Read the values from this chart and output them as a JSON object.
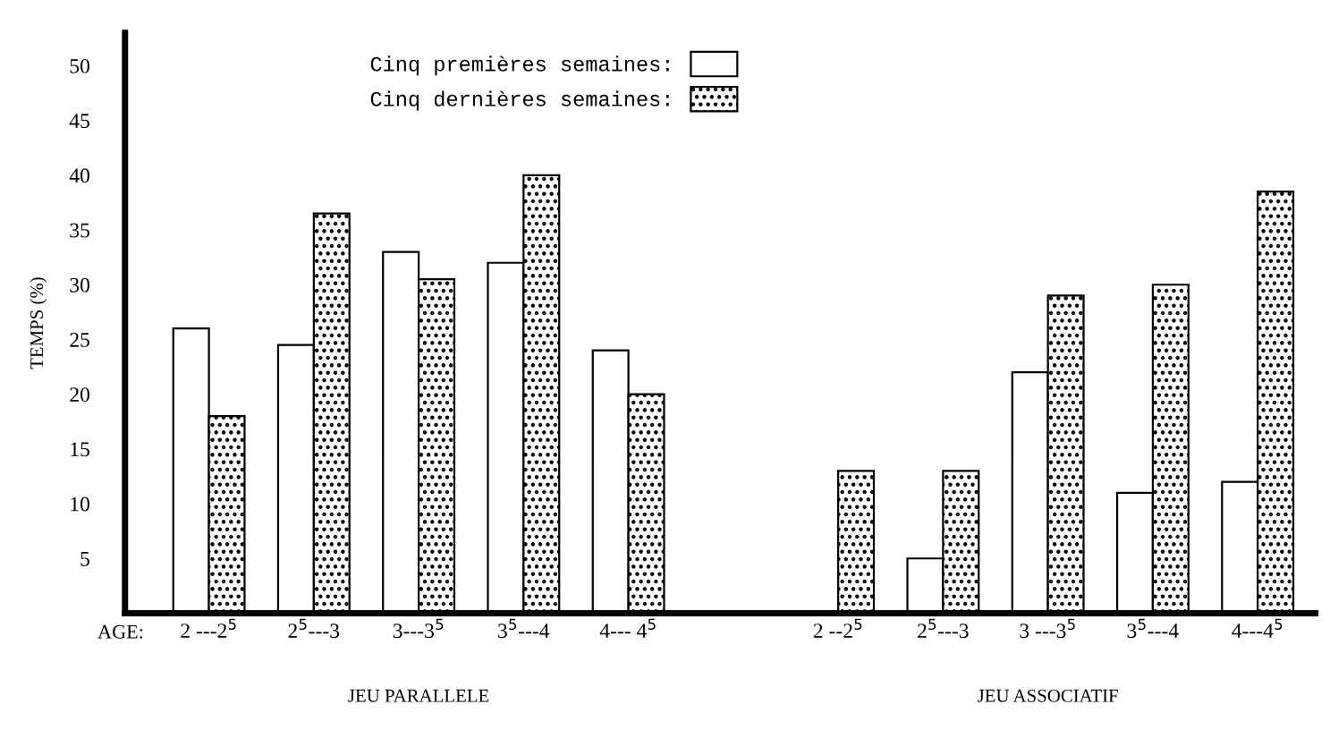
{
  "chart_data": {
    "type": "bar",
    "ylabel": "TEMPS (%)",
    "categories": [
      "2 ---2$^{5}$",
      "2$^{5}$---3",
      "3---3$^{5}$",
      "3$^{5}$---4",
      "4--- 4$^{5}$",
      null,
      "2 --2$^{5}$",
      "2$^{5}$---3",
      "3 ---3$^{5}$",
      "3$^{5}$---4",
      "4---4$^{5}$"
    ],
    "series": [
      {
        "name": "Cinq premières semaines:",
        "color": "#ffffff",
        "values": [
          26,
          24.5,
          33,
          32,
          24,
          null,
          null,
          5,
          22,
          11,
          12
        ]
      },
      {
        "name": "Cinq dernières semaines:",
        "color": "#000000",
        "values": [
          18,
          36.5,
          30.5,
          40,
          20,
          null,
          13,
          13,
          29,
          30,
          38.5
        ]
      }
    ],
    "ylim": [
      0,
      53
    ],
    "yticks": [
      5,
      10,
      15,
      20,
      25,
      30,
      35,
      40,
      45,
      50
    ],
    "grid": false,
    "legend": "top",
    "annotations": [
      "AGE:",
      "JEU PARALLELE",
      "JEU ASSOCIATIF"
    ]
  }
}
